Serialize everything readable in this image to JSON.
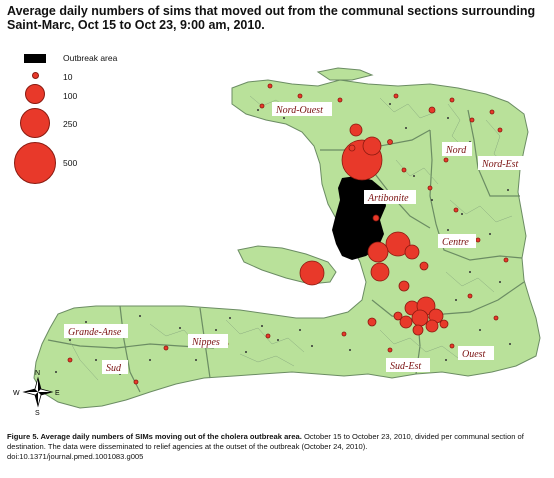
{
  "title": "Average daily numbers of sims that moved out from the communal sections surrounding Saint-Marc, Oct 15 to Oct 23, 9:00 am, 2010.",
  "legend": {
    "outbreak_label": "Outbreak area",
    "sizes": [
      "10",
      "100",
      "250",
      "500"
    ]
  },
  "regions": {
    "nord_ouest": "Nord-Ouest",
    "nord": "Nord",
    "nord_est": "Nord-Est",
    "artibonite": "Artibonite",
    "centre": "Centre",
    "grande_anse": "Grande-Anse",
    "nippes": "Nippes",
    "sud": "Sud",
    "sud_est": "Sud-Est",
    "ouest": "Ouest"
  },
  "compass": {
    "n": "N",
    "s": "S",
    "e": "E",
    "w": "W"
  },
  "caption": {
    "bold": "Figure 5. Average daily numbers of SIMs moving out of the cholera outbreak area.",
    "text": " October 15 to October 23, 2010, divided per communal section of destination. The data were disseminated to relief agencies at the outset of the outbreak (October 24, 2010).",
    "doi": "doi:10.1371/journal.pmed.1001083.g005"
  },
  "colors": {
    "land": "#b9e19a",
    "border": "#6b8c63",
    "outbreak": "#000000",
    "circle": "#e8392a",
    "circle_stroke": "#8a1a10"
  }
}
